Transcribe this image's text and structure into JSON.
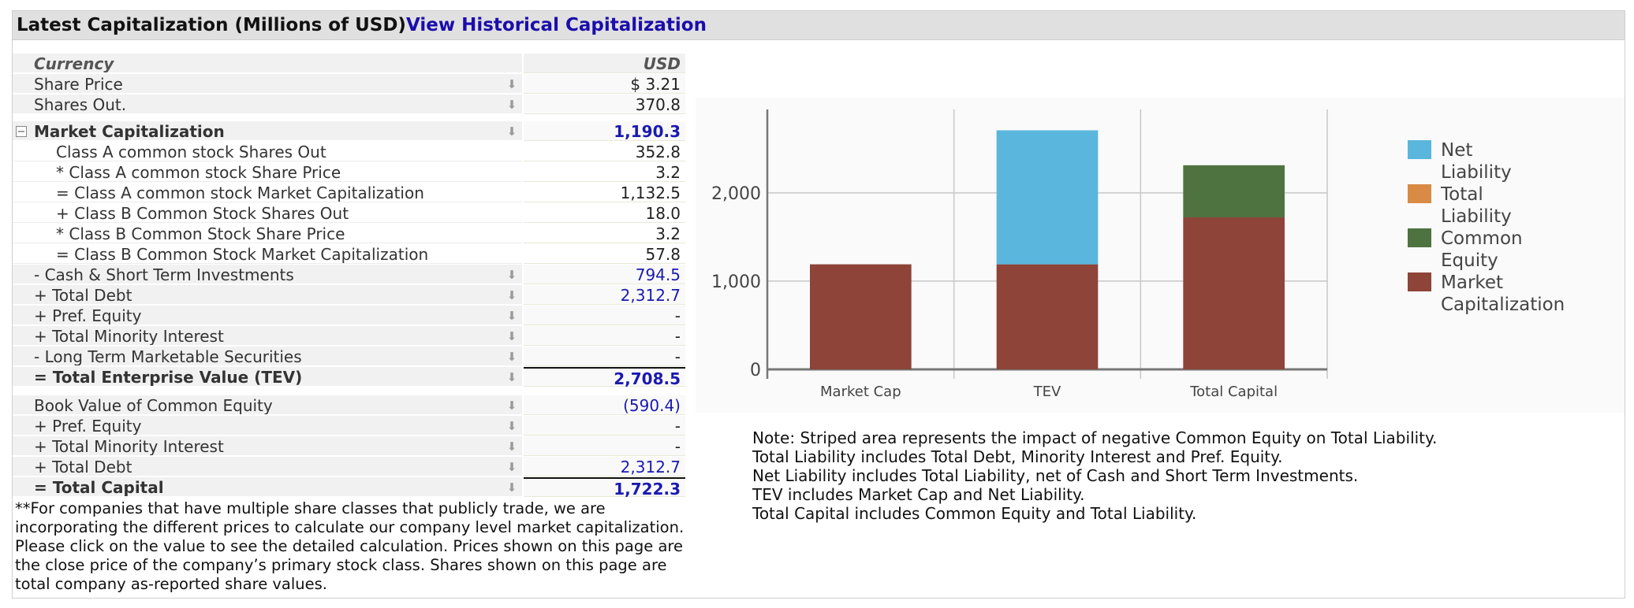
{
  "header": {
    "title": "Latest Capitalization (Millions of USD)",
    "link": "View Historical Capitalization"
  },
  "table": {
    "currency_label": "Currency",
    "currency_value": "USD",
    "rows": [
      {
        "label": "Share Price",
        "value": "$ 3.21"
      },
      {
        "label": "Shares Out.",
        "value": "370.8"
      },
      {
        "label": "Market Capitalization",
        "value": "1,190.3"
      },
      {
        "label": "Class A common stock Shares Out",
        "value": "352.8"
      },
      {
        "label": "* Class A common stock Share Price",
        "value": "3.2"
      },
      {
        "label": "= Class A common stock Market Capitalization",
        "value": "1,132.5"
      },
      {
        "label": "+ Class B Common Stock Shares Out",
        "value": "18.0"
      },
      {
        "label": "* Class B Common Stock Share Price",
        "value": "3.2"
      },
      {
        "label": "= Class B Common Stock Market Capitalization",
        "value": "57.8"
      },
      {
        "label": "- Cash & Short Term Investments",
        "value": "794.5"
      },
      {
        "label": "+ Total Debt",
        "value": "2,312.7"
      },
      {
        "label": "+ Pref. Equity",
        "value": "-"
      },
      {
        "label": "+ Total Minority Interest",
        "value": "-"
      },
      {
        "label": "- Long Term Marketable Securities",
        "value": "-"
      },
      {
        "label": "= Total Enterprise Value (TEV)",
        "value": "2,708.5"
      },
      {
        "label": "Book Value of Common Equity",
        "value": "(590.4)"
      },
      {
        "label": "+ Pref. Equity",
        "value": "-"
      },
      {
        "label": "+ Total Minority Interest",
        "value": "-"
      },
      {
        "label": "+ Total Debt",
        "value": "2,312.7"
      },
      {
        "label": "= Total Capital",
        "value": "1,722.3"
      }
    ]
  },
  "footnote": "**For companies that have multiple share classes that publicly trade, we are incorporating the different prices to calculate our company level market capitalization. Please click on the value to see the detailed calculation. Prices shown on this page are the close price of the company’s primary stock class. Shares shown on this page are total company as-reported share values.",
  "notes": [
    "Note: Striped area represents the impact of negative Common Equity on Total Liability.",
    "Total Liability includes Total Debt, Minority Interest and Pref. Equity.",
    "Net Liability includes Total Liability, net of Cash and Short Term Investments.",
    "TEV includes Market Cap and Net Liability.",
    "Total Capital includes Common Equity and Total Liability."
  ],
  "colors": {
    "net_liability": "#5ab6dc",
    "total_liability": "#d98a45",
    "common_equity": "#4e7340",
    "market_cap": "#8e4438"
  },
  "chart_data": {
    "type": "bar",
    "stacked": true,
    "categories": [
      "Market Cap",
      "TEV",
      "Total Capital"
    ],
    "series": [
      {
        "name": "Market Capitalization",
        "values": [
          1190.3,
          1190.3,
          1722.3
        ]
      },
      {
        "name": "Total Liability",
        "values": [
          0,
          0,
          0
        ]
      },
      {
        "name": "Common Equity",
        "values": [
          0,
          0,
          590.4
        ]
      },
      {
        "name": "Net Liability",
        "values": [
          0,
          1518.2,
          0
        ]
      }
    ],
    "legend": [
      "Net Liability",
      "Total Liability",
      "Common Equity",
      "Market Capitalization"
    ],
    "ylim": [
      0,
      2900
    ],
    "yticks": [
      "0",
      "1,000",
      "2,000"
    ],
    "ytick_values": [
      0,
      1000,
      2000
    ],
    "grid": true,
    "legend_position": "right"
  }
}
